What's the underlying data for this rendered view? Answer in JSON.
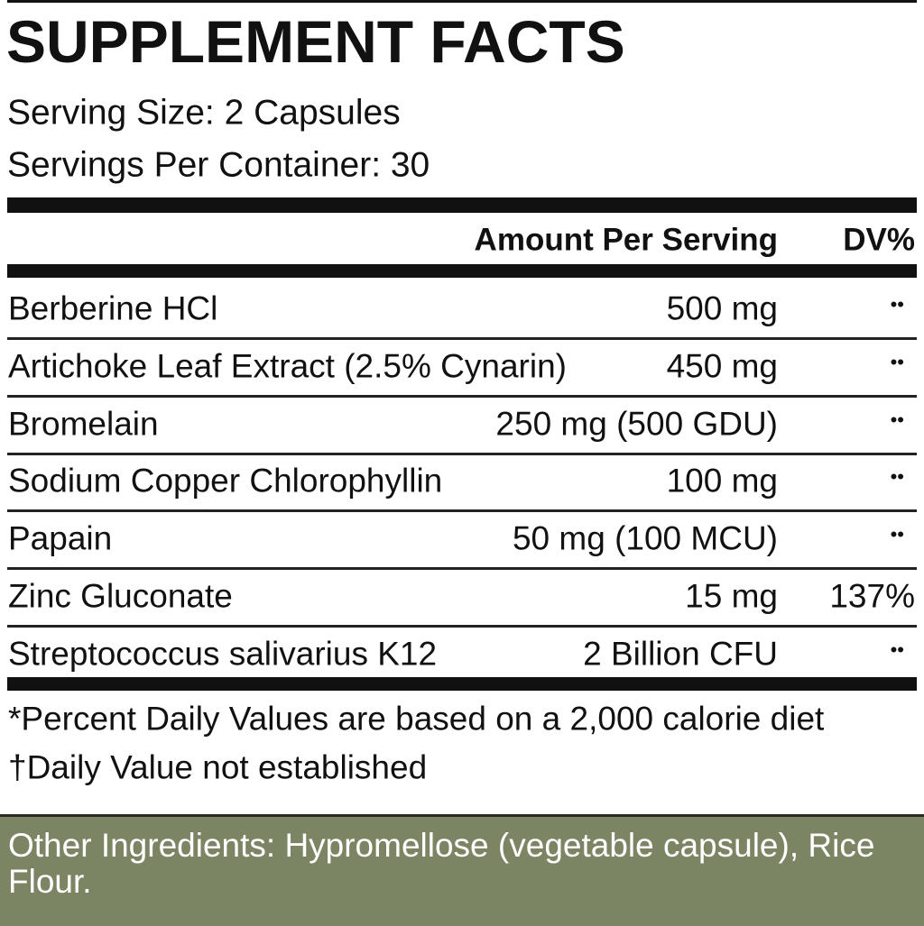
{
  "header": {
    "title": "SUPPLEMENT FACTS",
    "serving_size": "Serving Size: 2 Capsules",
    "servings_per_container": "Servings Per Container: 30"
  },
  "table": {
    "columns": [
      "Amount Per Serving",
      "DV%"
    ],
    "rows": [
      [
        "Berberine HCl",
        "500 mg",
        "••"
      ],
      [
        "Artichoke Leaf Extract (2.5% Cynarin)",
        "450 mg",
        "••"
      ],
      [
        "Bromelain",
        "250 mg (500 GDU)",
        "••"
      ],
      [
        "Sodium Copper Chlorophyllin",
        "100 mg",
        "••"
      ],
      [
        "Papain",
        "50 mg (100 MCU)",
        "••"
      ],
      [
        "Zinc Gluconate",
        "15 mg",
        "137%"
      ],
      [
        "Streptococcus salivarius K12",
        "2 Billion CFU",
        "••"
      ]
    ]
  },
  "footnotes": [
    "*Percent Daily Values are based on a 2,000 calorie diet",
    "†Daily Value not established"
  ],
  "other_ingredients": "Other Ingredients: Hypromellose (vegetable capsule), Rice Flour."
}
